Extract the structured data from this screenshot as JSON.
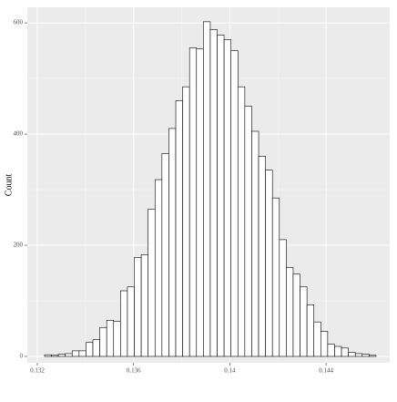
{
  "chart_data": {
    "type": "histogram",
    "y_label": "Count",
    "bins": [
      0.1323,
      0.132587,
      0.132874,
      0.133161,
      0.133448,
      0.133735,
      0.134022,
      0.134309,
      0.134596,
      0.134883,
      0.13517,
      0.135457,
      0.135744,
      0.136031,
      0.136318,
      0.136605,
      0.136892,
      0.137179,
      0.137466,
      0.137753,
      0.13804,
      0.138327,
      0.138614,
      0.138901,
      0.139188,
      0.139475,
      0.139762,
      0.140049,
      0.140336,
      0.140623,
      0.14091,
      0.141197,
      0.141484,
      0.141771,
      0.142058,
      0.142345,
      0.142632,
      0.142919,
      0.143206,
      0.143493,
      0.14378,
      0.144067,
      0.144354,
      0.144641,
      0.144928,
      0.145215,
      0.145502,
      0.145789,
      0.146076
    ],
    "values": [
      3,
      2,
      4,
      5,
      10,
      10,
      25,
      30,
      52,
      65,
      63,
      118,
      125,
      178,
      183,
      265,
      318,
      365,
      410,
      460,
      485,
      555,
      553,
      602,
      588,
      578,
      570,
      550,
      485,
      450,
      405,
      360,
      335,
      285,
      210,
      160,
      148,
      125,
      93,
      62,
      45,
      22,
      18,
      15,
      7,
      5,
      4,
      2
    ],
    "color": "#ffffff",
    "edgecolor": "#000000",
    "xlim": [
      0.131584,
      0.146645
    ],
    "xticks": [
      0.132,
      0.136,
      0.14,
      0.144
    ],
    "ylim": [
      -11.5,
      628
    ],
    "yticks": [
      0,
      200,
      400,
      600
    ],
    "grid": true
  }
}
